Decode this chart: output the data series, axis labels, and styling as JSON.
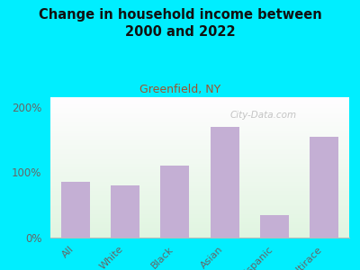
{
  "title": "Change in household income between\n2000 and 2022",
  "subtitle": "Greenfield, NY",
  "categories": [
    "All",
    "White",
    "Black",
    "Asian",
    "Hispanic",
    "Multirace"
  ],
  "values": [
    85,
    80,
    110,
    170,
    35,
    155
  ],
  "bar_color": "#c4afd4",
  "background_outer": "#00eeff",
  "title_color": "#111111",
  "subtitle_color": "#a0522d",
  "tick_color": "#666666",
  "ylabel_ticks": [
    0,
    100,
    200
  ],
  "ylabel_labels": [
    "0%",
    "100%",
    "200%"
  ],
  "ylim": [
    0,
    215
  ],
  "watermark": "City-Data.com"
}
